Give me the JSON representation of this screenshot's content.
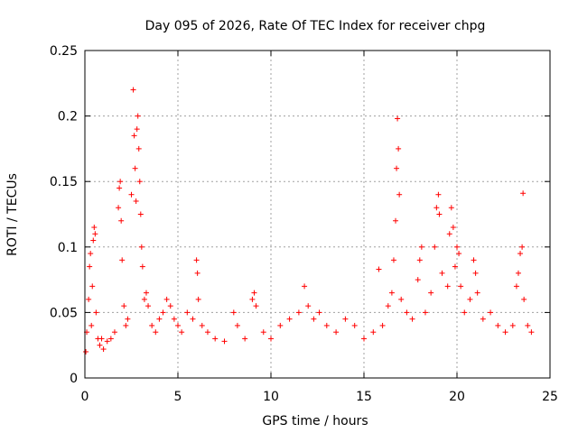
{
  "chart_data": {
    "type": "scatter",
    "title": "Day 095 of 2026, Rate Of TEC Index for receiver chpg",
    "xlabel": "GPS time / hours",
    "ylabel": "ROTI / TECUs",
    "xlim": [
      0,
      25
    ],
    "ylim": [
      0,
      0.25
    ],
    "x_ticks": [
      0,
      5,
      10,
      15,
      20,
      25
    ],
    "x_tick_labels": [
      "0",
      "5",
      "10",
      "15",
      "20",
      "25"
    ],
    "y_ticks": [
      0,
      0.05,
      0.1,
      0.15,
      0.2,
      0.25
    ],
    "y_tick_labels": [
      "0",
      "0.05",
      "0.1",
      "0.15",
      "0.2",
      "0.25"
    ],
    "grid": true,
    "marker": "+",
    "color": "#ff0000",
    "series": [
      {
        "name": "ROTI",
        "points": [
          [
            0.05,
            0.02
          ],
          [
            0.1,
            0.035
          ],
          [
            0.2,
            0.06
          ],
          [
            0.25,
            0.085
          ],
          [
            0.3,
            0.095
          ],
          [
            0.35,
            0.04
          ],
          [
            0.4,
            0.07
          ],
          [
            0.45,
            0.105
          ],
          [
            0.5,
            0.115
          ],
          [
            0.55,
            0.11
          ],
          [
            0.6,
            0.05
          ],
          [
            0.7,
            0.03
          ],
          [
            0.8,
            0.025
          ],
          [
            0.9,
            0.03
          ],
          [
            1.0,
            0.022
          ],
          [
            1.2,
            0.028
          ],
          [
            1.4,
            0.03
          ],
          [
            1.6,
            0.035
          ],
          [
            1.8,
            0.13
          ],
          [
            1.85,
            0.145
          ],
          [
            1.9,
            0.15
          ],
          [
            1.95,
            0.12
          ],
          [
            2.0,
            0.09
          ],
          [
            2.1,
            0.055
          ],
          [
            2.2,
            0.04
          ],
          [
            2.3,
            0.045
          ],
          [
            2.5,
            0.14
          ],
          [
            2.6,
            0.22
          ],
          [
            2.65,
            0.185
          ],
          [
            2.7,
            0.16
          ],
          [
            2.75,
            0.135
          ],
          [
            2.8,
            0.19
          ],
          [
            2.85,
            0.2
          ],
          [
            2.9,
            0.175
          ],
          [
            2.95,
            0.15
          ],
          [
            3.0,
            0.125
          ],
          [
            3.05,
            0.1
          ],
          [
            3.1,
            0.085
          ],
          [
            3.2,
            0.06
          ],
          [
            3.3,
            0.065
          ],
          [
            3.4,
            0.055
          ],
          [
            3.6,
            0.04
          ],
          [
            3.8,
            0.035
          ],
          [
            4.0,
            0.045
          ],
          [
            4.2,
            0.05
          ],
          [
            4.4,
            0.06
          ],
          [
            4.6,
            0.055
          ],
          [
            4.8,
            0.045
          ],
          [
            5.0,
            0.04
          ],
          [
            5.2,
            0.035
          ],
          [
            5.5,
            0.05
          ],
          [
            5.8,
            0.045
          ],
          [
            6.0,
            0.09
          ],
          [
            6.05,
            0.08
          ],
          [
            6.1,
            0.06
          ],
          [
            6.3,
            0.04
          ],
          [
            6.6,
            0.035
          ],
          [
            7.0,
            0.03
          ],
          [
            7.5,
            0.028
          ],
          [
            8.0,
            0.05
          ],
          [
            8.2,
            0.04
          ],
          [
            8.6,
            0.03
          ],
          [
            9.0,
            0.06
          ],
          [
            9.1,
            0.065
          ],
          [
            9.2,
            0.055
          ],
          [
            9.6,
            0.035
          ],
          [
            10.0,
            0.03
          ],
          [
            10.5,
            0.04
          ],
          [
            11.0,
            0.045
          ],
          [
            11.5,
            0.05
          ],
          [
            11.8,
            0.07
          ],
          [
            12.0,
            0.055
          ],
          [
            12.3,
            0.045
          ],
          [
            12.6,
            0.05
          ],
          [
            13.0,
            0.04
          ],
          [
            13.5,
            0.035
          ],
          [
            14.0,
            0.045
          ],
          [
            14.5,
            0.04
          ],
          [
            15.0,
            0.03
          ],
          [
            15.5,
            0.035
          ],
          [
            15.8,
            0.083
          ],
          [
            16.0,
            0.04
          ],
          [
            16.3,
            0.055
          ],
          [
            16.5,
            0.065
          ],
          [
            16.6,
            0.09
          ],
          [
            16.7,
            0.12
          ],
          [
            16.75,
            0.16
          ],
          [
            16.8,
            0.198
          ],
          [
            16.85,
            0.175
          ],
          [
            16.9,
            0.14
          ],
          [
            17.0,
            0.06
          ],
          [
            17.3,
            0.05
          ],
          [
            17.6,
            0.045
          ],
          [
            17.9,
            0.075
          ],
          [
            18.0,
            0.09
          ],
          [
            18.1,
            0.1
          ],
          [
            18.3,
            0.05
          ],
          [
            18.6,
            0.065
          ],
          [
            18.8,
            0.1
          ],
          [
            18.9,
            0.13
          ],
          [
            19.0,
            0.14
          ],
          [
            19.05,
            0.125
          ],
          [
            19.2,
            0.08
          ],
          [
            19.5,
            0.07
          ],
          [
            19.6,
            0.11
          ],
          [
            19.7,
            0.13
          ],
          [
            19.8,
            0.115
          ],
          [
            19.9,
            0.085
          ],
          [
            20.0,
            0.1
          ],
          [
            20.1,
            0.095
          ],
          [
            20.2,
            0.07
          ],
          [
            20.4,
            0.05
          ],
          [
            20.7,
            0.06
          ],
          [
            20.9,
            0.09
          ],
          [
            21.0,
            0.08
          ],
          [
            21.1,
            0.065
          ],
          [
            21.4,
            0.045
          ],
          [
            21.8,
            0.05
          ],
          [
            22.2,
            0.04
          ],
          [
            22.6,
            0.035
          ],
          [
            23.0,
            0.04
          ],
          [
            23.2,
            0.07
          ],
          [
            23.3,
            0.08
          ],
          [
            23.4,
            0.095
          ],
          [
            23.5,
            0.1
          ],
          [
            23.55,
            0.141
          ],
          [
            23.6,
            0.06
          ],
          [
            23.8,
            0.04
          ],
          [
            24.0,
            0.035
          ]
        ]
      }
    ]
  }
}
